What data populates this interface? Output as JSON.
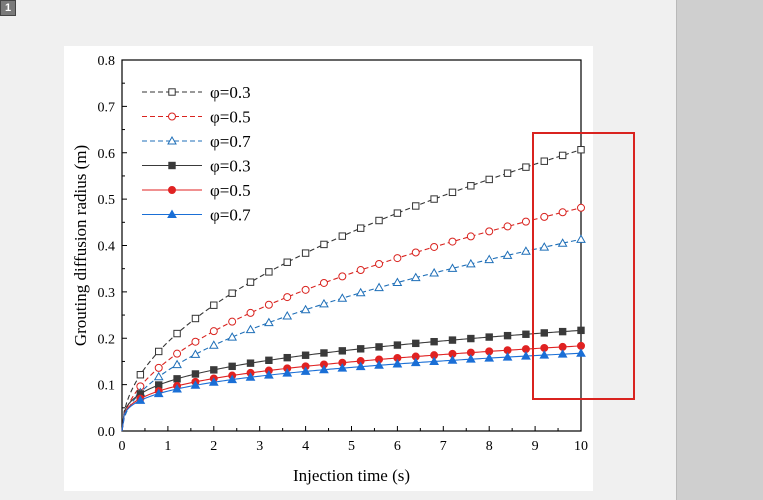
{
  "page": {
    "number_badge": "1"
  },
  "chart_data": {
    "type": "line",
    "title": "",
    "xlabel": "Injection time (s)",
    "ylabel": "Grouting diffusion radius (m)",
    "xlim": [
      0,
      10
    ],
    "ylim": [
      0,
      0.8
    ],
    "xticks": [
      0,
      1,
      2,
      3,
      4,
      5,
      6,
      7,
      8,
      9,
      10
    ],
    "yticks": [
      0.0,
      0.1,
      0.2,
      0.3,
      0.4,
      0.5,
      0.6,
      0.7,
      0.8
    ],
    "ytick_labels": [
      "0.0",
      "0.1",
      "0.2",
      "0.3",
      "0.4",
      "0.5",
      "0.6",
      "0.7",
      "0.8"
    ],
    "grid": false,
    "legend_position": "top-left",
    "highlight_box_color": "#d9231f",
    "series": [
      {
        "name": "φ=0.3",
        "style": "dashed",
        "marker": "open-square",
        "color": "#333333",
        "A": 0.1918,
        "p": 0.5
      },
      {
        "name": "φ=0.5",
        "style": "dashed",
        "marker": "open-circle",
        "color": "#d9231f",
        "A": 0.1522,
        "p": 0.5
      },
      {
        "name": "φ=0.7",
        "style": "dashed",
        "marker": "open-triangle",
        "color": "#1f6fb8",
        "A": 0.1307,
        "p": 0.5
      },
      {
        "name": "φ=0.3",
        "style": "solid",
        "marker": "filled-square",
        "color": "#3a3a3a",
        "A": 0.1063,
        "p": 0.31
      },
      {
        "name": "φ=0.5",
        "style": "solid",
        "marker": "filled-circle",
        "color": "#e02222",
        "A": 0.092,
        "p": 0.3
      },
      {
        "name": "φ=0.7",
        "style": "solid",
        "marker": "filled-triangle",
        "color": "#1a6fd6",
        "A": 0.086,
        "p": 0.29
      }
    ],
    "marker_x": [
      0.4,
      0.8,
      1.2,
      1.6,
      2.0,
      2.4,
      2.8,
      3.2,
      3.6,
      4.0,
      4.4,
      4.8,
      5.2,
      5.6,
      6.0,
      6.4,
      6.8,
      7.2,
      7.6,
      8.0,
      8.4,
      8.8,
      9.2,
      9.6,
      10.0
    ]
  }
}
